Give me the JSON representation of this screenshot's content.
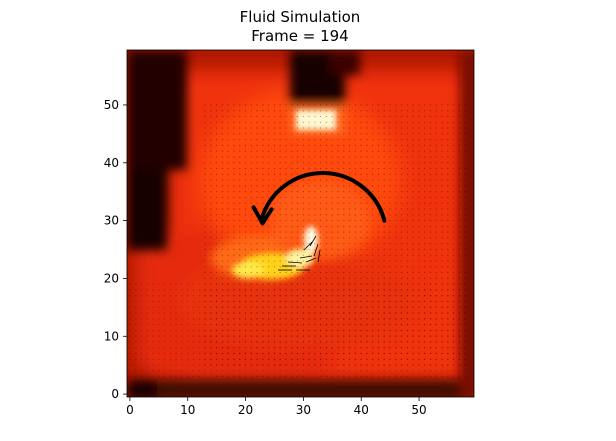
{
  "chart_data": {
    "type": "heatmap",
    "title": "Fluid Simulation",
    "subtitle": "Frame = 194",
    "xlabel": "",
    "ylabel": "",
    "xlim": [
      -0.5,
      59.5
    ],
    "ylim": [
      59.5,
      -0.5
    ],
    "grid": false,
    "grid_size": [
      60,
      60
    ],
    "colormap": "hot",
    "x_ticks": [
      0,
      10,
      20,
      30,
      40,
      50
    ],
    "y_ticks": [
      0,
      10,
      20,
      30,
      40,
      50
    ],
    "x_tick_labels": [
      "0",
      "10",
      "20",
      "30",
      "40",
      "50"
    ],
    "y_tick_labels": [
      "0",
      "10",
      "20",
      "30",
      "40",
      "50"
    ],
    "overlays": [
      {
        "type": "quiver",
        "description": "velocity vector field"
      },
      {
        "type": "rotation-arrow",
        "direction": "counter-clockwise",
        "center": [
          33,
          30
        ],
        "radius": 11
      }
    ],
    "colors": {
      "background": "#ffffff",
      "arrow": "#000000"
    }
  }
}
